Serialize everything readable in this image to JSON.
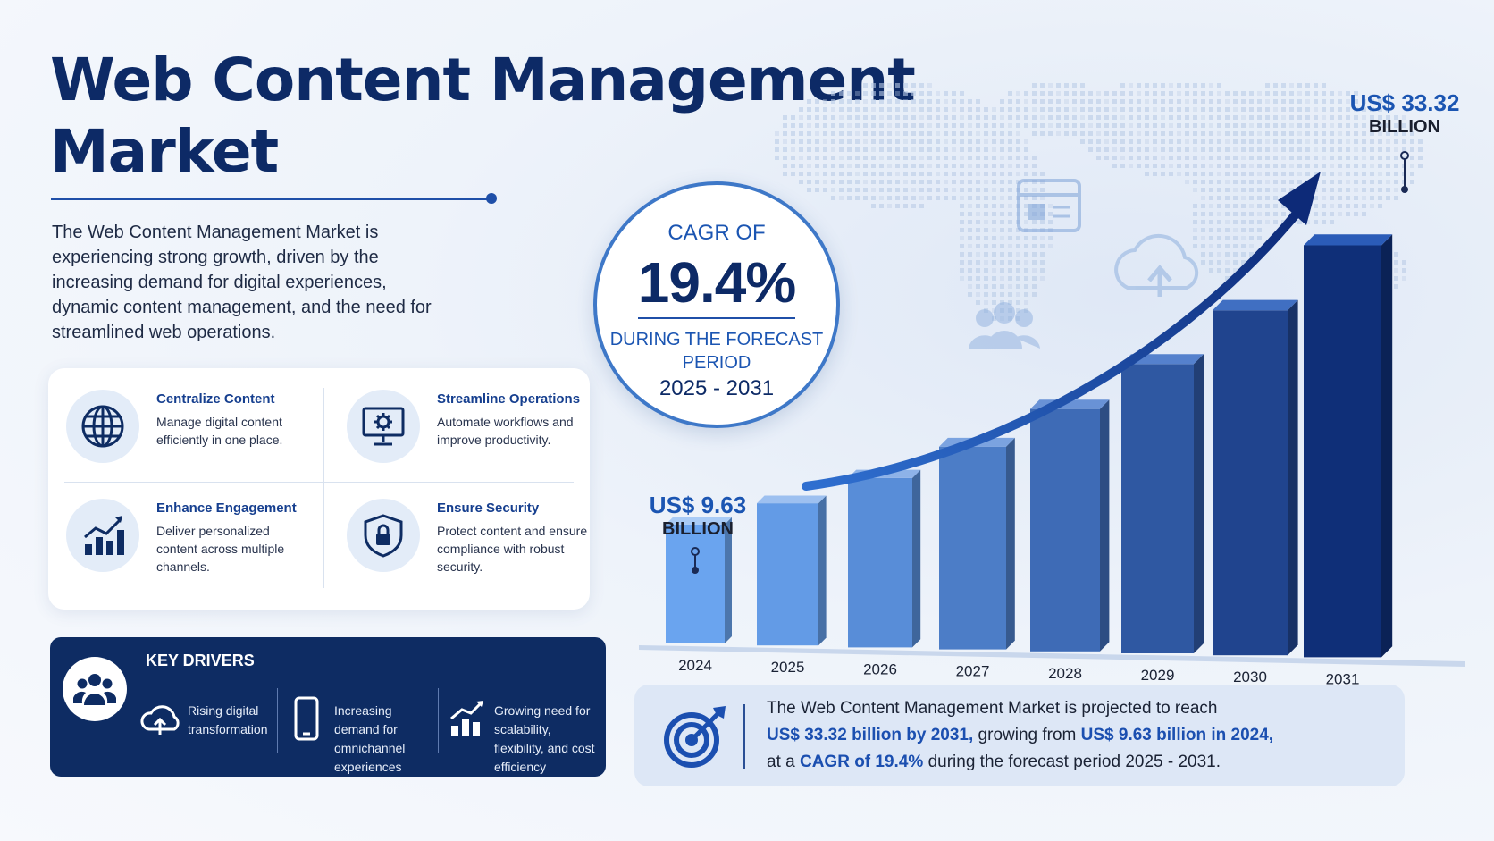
{
  "title": {
    "line1": "Web Content Management",
    "line2": "Market"
  },
  "intro": "The Web Content Management Market is experiencing strong growth, driven by the increasing demand for digital experiences, dynamic content management, and the need for streamlined web operations.",
  "features": [
    {
      "icon": "globe-icon",
      "title": "Centralize Content",
      "desc": "Manage digital content efficiently in one place."
    },
    {
      "icon": "monitor-gear-icon",
      "title": "Streamline Operations",
      "desc": "Automate workflows and improve productivity."
    },
    {
      "icon": "growth-chart-icon",
      "title": "Enhance Engagement",
      "desc": "Deliver personalized content across multiple channels."
    },
    {
      "icon": "shield-lock-icon",
      "title": "Ensure Security",
      "desc": "Protect content and ensure compliance with robust security."
    }
  ],
  "key_drivers": {
    "title": "KEY DRIVERS",
    "items": [
      {
        "icon": "cloud-upload-icon",
        "text": "Rising digital transformation"
      },
      {
        "icon": "smartphone-icon",
        "text": "Increasing demand for omnichannel experiences"
      },
      {
        "icon": "growth-bars-icon",
        "text": "Growing need for scalability, flexibility, and cost efficiency"
      }
    ]
  },
  "cagr": {
    "label": "CAGR OF",
    "value": "19.4%",
    "period_label": "DURING THE FORECAST PERIOD",
    "period": "2025 - 2031"
  },
  "callouts": {
    "start": {
      "value": "US$ 9.63",
      "unit": "BILLION"
    },
    "end": {
      "value": "US$ 33.32",
      "unit": "BILLION"
    }
  },
  "summary": {
    "p1": "The Web Content Management Market is projected to reach",
    "b1": "US$ 33.32 billion by 2031,",
    "p2": " growing from ",
    "b2": "US$ 9.63 billion in 2024,",
    "p3": "at a ",
    "b3": "CAGR of 19.4%",
    "p4": " during the forecast period 2025 - 2031."
  },
  "colors": {
    "navy": "#0d2a66",
    "accent": "#1b55b2",
    "bar_light": "#6aa4ef",
    "bar_dark": "#0f2f78"
  },
  "chart_data": {
    "type": "bar",
    "title": "Web Content Management Market (US$ Billion)",
    "categories": [
      "2024",
      "2025",
      "2026",
      "2027",
      "2028",
      "2029",
      "2030",
      "2031"
    ],
    "values": [
      9.63,
      11.5,
      13.7,
      16.4,
      19.6,
      23.4,
      27.9,
      33.32
    ],
    "labeled_values": {
      "2024": "US$ 9.63 BILLION",
      "2031": "US$ 33.32 BILLION"
    },
    "xlabel": "",
    "ylabel": "",
    "ylim": [
      0,
      36
    ],
    "trend_arrow": true
  }
}
